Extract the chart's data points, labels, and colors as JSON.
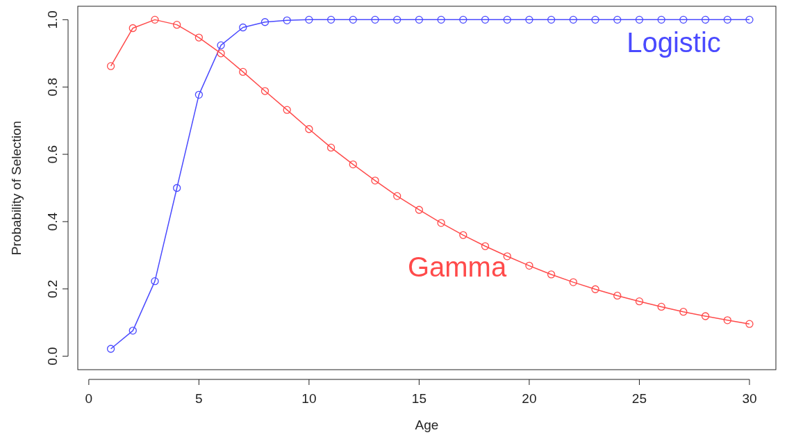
{
  "chart_data": {
    "type": "line",
    "xlabel": "Age",
    "ylabel": "Probability of Selection",
    "x": [
      1,
      2,
      3,
      4,
      5,
      6,
      7,
      8,
      9,
      10,
      11,
      12,
      13,
      14,
      15,
      16,
      17,
      18,
      19,
      20,
      21,
      22,
      23,
      24,
      25,
      26,
      27,
      28,
      29,
      30
    ],
    "series": [
      {
        "name": "Logistic",
        "color": "#4a4aff",
        "values": [
          0.022,
          0.076,
          0.223,
          0.5,
          0.777,
          0.924,
          0.977,
          0.993,
          0.998,
          1,
          1,
          1,
          1,
          1,
          1,
          1,
          1,
          1,
          1,
          1,
          1,
          1,
          1,
          1,
          1,
          1,
          1,
          1,
          1,
          1
        ]
      },
      {
        "name": "Gamma",
        "color": "#ff4a4a",
        "values": [
          0.862,
          0.975,
          1,
          0.985,
          0.947,
          0.9,
          0.845,
          0.788,
          0.732,
          0.675,
          0.62,
          0.57,
          0.522,
          0.476,
          0.435,
          0.396,
          0.36,
          0.327,
          0.297,
          0.269,
          0.243,
          0.22,
          0.199,
          0.18,
          0.163,
          0.147,
          0.132,
          0.119,
          0.107,
          0.096
        ]
      }
    ],
    "xlim": [
      -0.5,
      31.2
    ],
    "ylim": [
      -0.04,
      1.04
    ],
    "xticks": [
      0,
      5,
      10,
      15,
      20,
      25,
      30
    ],
    "yticks": [
      {
        "value": 0,
        "label": "0.0"
      },
      0.2,
      0.4,
      0.6,
      0.8,
      {
        "value": 1,
        "label": "1.0"
      }
    ],
    "marker": "circle",
    "legend": false,
    "grid": false
  }
}
